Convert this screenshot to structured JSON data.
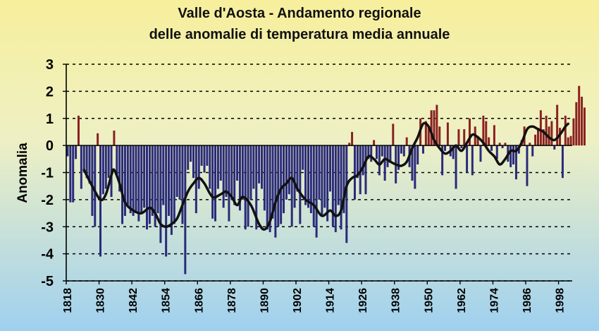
{
  "chart_data": {
    "type": "bar",
    "title_line1": "Valle d'Aosta - Andamento regionale",
    "title_line2": "delle anomalie di temperatura media annuale",
    "ylabel": "Anomalia",
    "xlabel": "",
    "ylim": [
      -5,
      3
    ],
    "xlim": [
      1818,
      2003
    ],
    "y_ticks": [
      "3",
      "2",
      "1",
      "0",
      "-1",
      "-2",
      "-3",
      "-4",
      "-5"
    ],
    "x_ticks": [
      "1818",
      "1830",
      "1842",
      "1854",
      "1866",
      "1878",
      "1890",
      "1902",
      "1914",
      "1926",
      "1938",
      "1950",
      "1962",
      "1974",
      "1986",
      "1998"
    ],
    "grid": "horizontal dashed",
    "colors": {
      "negative_bar": "#2a2a78",
      "positive_bar": "#8a2020",
      "smooth_line": "#111111",
      "bg_top": "#f7ef9c",
      "bg_bottom": "#9fd0ef"
    },
    "annual_anomaly": {
      "start_year": 1818,
      "values": [
        -0.4,
        -2.1,
        -2.1,
        -0.5,
        1.1,
        -1.6,
        -1.0,
        -1.2,
        -1.4,
        -2.6,
        -3.0,
        0.45,
        -4.1,
        -1.8,
        -1.6,
        -1.2,
        -1.9,
        0.55,
        -1.1,
        -1.7,
        -2.9,
        -2.6,
        -2.2,
        -2.5,
        -2.6,
        -2.5,
        -2.8,
        -2.5,
        -2.3,
        -3.1,
        -2.9,
        -2.6,
        -3.0,
        -2.5,
        -3.6,
        -2.2,
        -4.1,
        -2.6,
        -3.3,
        -2.9,
        -1.9,
        -2.0,
        -2.9,
        -4.75,
        -0.9,
        -0.6,
        -1.2,
        -2.5,
        -1.6,
        -0.75,
        -1.0,
        -0.75,
        -1.6,
        -2.7,
        -2.8,
        -1.6,
        -1.3,
        -2.3,
        -1.9,
        -2.8,
        -2.0,
        -2.2,
        -1.3,
        -2.4,
        -2.0,
        -3.1,
        -3.0,
        -2.0,
        -1.6,
        -3.1,
        -1.4,
        -1.6,
        -2.4,
        -3.1,
        -3.2,
        -2.7,
        -3.4,
        -3.0,
        -2.9,
        -2.5,
        -2.0,
        -1.8,
        -3.0,
        -2.3,
        -1.7,
        -2.9,
        -0.9,
        -2.2,
        -2.3,
        -2.5,
        -3.0,
        -3.4,
        -2.0,
        -2.6,
        -2.3,
        -2.8,
        -1.7,
        -3.0,
        -3.2,
        -2.2,
        -3.1,
        -2.5,
        -3.6,
        0.1,
        0.5,
        -2.0,
        -1.2,
        -1.8,
        -1.1,
        -1.8,
        -0.5,
        -0.6,
        0.2,
        -0.5,
        -1.1,
        -0.4,
        -1.3,
        -0.8,
        -0.6,
        0.8,
        -1.4,
        -0.9,
        -0.3,
        -0.4,
        0.3,
        -0.8,
        -1.3,
        -1.6,
        -0.7,
        1.0,
        -0.3,
        0.9,
        0.7,
        1.3,
        1.3,
        1.5,
        0.7,
        -1.1,
        -0.2,
        0.85,
        -0.4,
        -0.5,
        -1.6,
        0.6,
        -0.1,
        0.6,
        -1.0,
        1.0,
        -1.1,
        0.7,
        0.35,
        -0.6,
        1.1,
        0.9,
        0.3,
        -0.2,
        0.75,
        -0.5,
        0.1,
        -0.1,
        0.1,
        -0.6,
        -0.8,
        -0.7,
        -1.25,
        -0.3,
        0.2,
        0.7,
        -1.5,
        0.1,
        -0.4,
        0.4,
        0.65,
        1.3,
        0.6,
        1.1,
        0.7,
        0.9,
        -0.15,
        1.5,
        0.65,
        -1.2,
        1.1,
        0.3,
        0.35,
        1.0,
        1.6,
        2.2,
        1.8,
        1.4
      ]
    },
    "smoothed_trend": [
      {
        "x": 1824,
        "y": -0.9
      },
      {
        "x": 1827,
        "y": -1.5
      },
      {
        "x": 1830,
        "y": -2.0
      },
      {
        "x": 1832,
        "y": -1.8
      },
      {
        "x": 1834,
        "y": -1.1
      },
      {
        "x": 1835,
        "y": -0.9
      },
      {
        "x": 1837,
        "y": -1.4
      },
      {
        "x": 1839,
        "y": -2.1
      },
      {
        "x": 1842,
        "y": -2.4
      },
      {
        "x": 1845,
        "y": -2.5
      },
      {
        "x": 1848,
        "y": -2.3
      },
      {
        "x": 1850,
        "y": -2.5
      },
      {
        "x": 1852,
        "y": -2.9
      },
      {
        "x": 1854,
        "y": -3.0
      },
      {
        "x": 1856,
        "y": -2.9
      },
      {
        "x": 1858,
        "y": -2.7
      },
      {
        "x": 1860,
        "y": -2.2
      },
      {
        "x": 1862,
        "y": -1.7
      },
      {
        "x": 1864,
        "y": -1.4
      },
      {
        "x": 1866,
        "y": -1.2
      },
      {
        "x": 1868,
        "y": -1.4
      },
      {
        "x": 1871,
        "y": -1.9
      },
      {
        "x": 1874,
        "y": -1.8
      },
      {
        "x": 1876,
        "y": -1.7
      },
      {
        "x": 1878,
        "y": -1.9
      },
      {
        "x": 1880,
        "y": -2.2
      },
      {
        "x": 1882,
        "y": -1.9
      },
      {
        "x": 1885,
        "y": -2.2
      },
      {
        "x": 1888,
        "y": -2.9
      },
      {
        "x": 1890,
        "y": -3.1
      },
      {
        "x": 1892,
        "y": -2.8
      },
      {
        "x": 1894,
        "y": -2.1
      },
      {
        "x": 1896,
        "y": -1.6
      },
      {
        "x": 1898,
        "y": -1.4
      },
      {
        "x": 1900,
        "y": -1.2
      },
      {
        "x": 1902,
        "y": -1.6
      },
      {
        "x": 1905,
        "y": -2.0
      },
      {
        "x": 1908,
        "y": -2.2
      },
      {
        "x": 1911,
        "y": -2.6
      },
      {
        "x": 1914,
        "y": -2.4
      },
      {
        "x": 1916,
        "y": -2.6
      },
      {
        "x": 1918,
        "y": -2.4
      },
      {
        "x": 1920,
        "y": -1.5
      },
      {
        "x": 1922,
        "y": -1.2
      },
      {
        "x": 1924,
        "y": -1.1
      },
      {
        "x": 1926,
        "y": -0.8
      },
      {
        "x": 1928,
        "y": -0.4
      },
      {
        "x": 1930,
        "y": -0.5
      },
      {
        "x": 1932,
        "y": -0.7
      },
      {
        "x": 1934,
        "y": -0.5
      },
      {
        "x": 1936,
        "y": -0.6
      },
      {
        "x": 1938,
        "y": -0.7
      },
      {
        "x": 1940,
        "y": -0.75
      },
      {
        "x": 1942,
        "y": -0.6
      },
      {
        "x": 1944,
        "y": -0.1
      },
      {
        "x": 1946,
        "y": 0.3
      },
      {
        "x": 1948,
        "y": 0.8
      },
      {
        "x": 1950,
        "y": 0.7
      },
      {
        "x": 1952,
        "y": 0.2
      },
      {
        "x": 1954,
        "y": -0.1
      },
      {
        "x": 1956,
        "y": -0.3
      },
      {
        "x": 1958,
        "y": -0.2
      },
      {
        "x": 1960,
        "y": 0.0
      },
      {
        "x": 1962,
        "y": -0.2
      },
      {
        "x": 1964,
        "y": 0.1
      },
      {
        "x": 1966,
        "y": 0.4
      },
      {
        "x": 1968,
        "y": 0.3
      },
      {
        "x": 1970,
        "y": 0.1
      },
      {
        "x": 1972,
        "y": -0.2
      },
      {
        "x": 1974,
        "y": -0.4
      },
      {
        "x": 1976,
        "y": -0.7
      },
      {
        "x": 1978,
        "y": -0.5
      },
      {
        "x": 1980,
        "y": -0.2
      },
      {
        "x": 1982,
        "y": -0.2
      },
      {
        "x": 1984,
        "y": 0.1
      },
      {
        "x": 1986,
        "y": 0.6
      },
      {
        "x": 1988,
        "y": 0.7
      },
      {
        "x": 1990,
        "y": 0.6
      },
      {
        "x": 1992,
        "y": 0.5
      },
      {
        "x": 1994,
        "y": 0.3
      },
      {
        "x": 1996,
        "y": 0.2
      },
      {
        "x": 1998,
        "y": 0.4
      },
      {
        "x": 2000,
        "y": 0.7
      },
      {
        "x": 2001,
        "y": 0.8
      }
    ]
  }
}
